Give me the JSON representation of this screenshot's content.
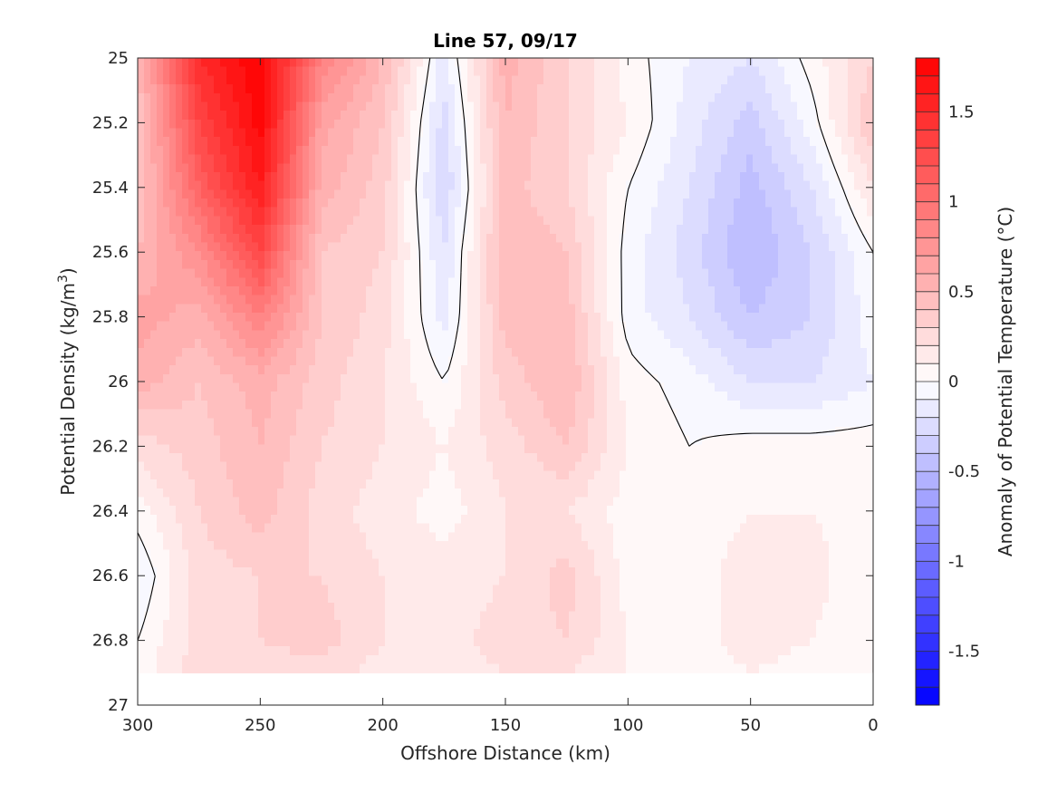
{
  "chart_data": {
    "type": "heatmap",
    "title": "Line 57, 09/17",
    "xlabel": "Offshore Distance (km)",
    "ylabel_main": "Potential Density (kg/m",
    "ylabel_sup": "3",
    "ylabel_close": ")",
    "xlim": [
      300,
      0
    ],
    "ylim": [
      25,
      27
    ],
    "x_reversed": true,
    "y_reversed": true,
    "x_ticks": [
      300,
      250,
      200,
      150,
      100,
      50,
      0
    ],
    "x_tick_labels": [
      "300",
      "250",
      "200",
      "150",
      "100",
      "50",
      "0"
    ],
    "y_ticks": [
      25,
      25.2,
      25.4,
      25.6,
      25.8,
      26,
      26.2,
      26.4,
      26.6,
      26.8,
      27
    ],
    "y_tick_labels": [
      "25",
      "25.2",
      "25.4",
      "25.6",
      "25.8",
      "26",
      "26.2",
      "26.4",
      "26.6",
      "26.8",
      "27"
    ],
    "data_y_max": 26.9,
    "colorbar": {
      "label": "Anomaly of Potential Temperature (°C)",
      "range": [
        -1.8,
        1.8
      ],
      "levels": 36,
      "ticks": [
        1.5,
        1,
        0.5,
        0,
        -0.5,
        -1,
        -1.5
      ],
      "tick_labels": [
        "1.5",
        "1",
        "0.5",
        "0",
        "-0.5",
        "-1",
        "-1.5"
      ],
      "color_max": "#ff0000",
      "color_mid": "#ffffff",
      "color_min": "#0000ff"
    },
    "grid_x": [
      300,
      275,
      250,
      225,
      200,
      175,
      150,
      125,
      100,
      75,
      50,
      25,
      0
    ],
    "grid_y": [
      25,
      25.2,
      25.4,
      25.6,
      25.8,
      26,
      26.2,
      26.4,
      26.6,
      26.8,
      26.9
    ],
    "values": [
      [
        0.5,
        1.5,
        1.8,
        0.9,
        0.5,
        -0.15,
        0.55,
        0.3,
        0.05,
        -0.1,
        -0.2,
        0.05,
        0.3
      ],
      [
        0.4,
        1.3,
        1.75,
        0.65,
        0.4,
        -0.25,
        0.5,
        0.3,
        0.1,
        -0.15,
        -0.35,
        -0.05,
        0.4
      ],
      [
        0.4,
        1.1,
        1.6,
        0.55,
        0.35,
        -0.3,
        0.45,
        0.3,
        0.0,
        -0.2,
        -0.45,
        -0.2,
        0.2
      ],
      [
        0.5,
        0.8,
        1.3,
        0.4,
        0.3,
        -0.2,
        0.5,
        0.4,
        -0.05,
        -0.25,
        -0.5,
        -0.3,
        0.0
      ],
      [
        0.65,
        0.55,
        0.9,
        0.4,
        0.25,
        -0.15,
        0.45,
        0.45,
        -0.05,
        -0.2,
        -0.4,
        -0.3,
        -0.05
      ],
      [
        0.55,
        0.4,
        0.55,
        0.35,
        0.2,
        0.0,
        0.35,
        0.5,
        0.05,
        -0.05,
        -0.2,
        -0.2,
        -0.1
      ],
      [
        0.25,
        0.35,
        0.5,
        0.3,
        0.2,
        0.1,
        0.25,
        0.4,
        0.1,
        0.0,
        0.05,
        0.05,
        0.05
      ],
      [
        0.05,
        0.3,
        0.45,
        0.25,
        0.15,
        0.05,
        0.2,
        0.2,
        0.05,
        0.05,
        0.1,
        0.1,
        0.05
      ],
      [
        -0.1,
        0.25,
        0.3,
        0.3,
        0.2,
        0.15,
        0.2,
        0.35,
        0.05,
        0.05,
        0.15,
        0.15,
        0.0
      ],
      [
        0.0,
        0.25,
        0.3,
        0.35,
        0.2,
        0.15,
        0.25,
        0.3,
        0.1,
        0.05,
        0.15,
        0.1,
        0.0
      ],
      [
        0.05,
        0.25,
        0.25,
        0.25,
        0.15,
        0.15,
        0.2,
        0.2,
        0.1,
        0.05,
        0.1,
        0.05,
        0.0
      ]
    ]
  }
}
